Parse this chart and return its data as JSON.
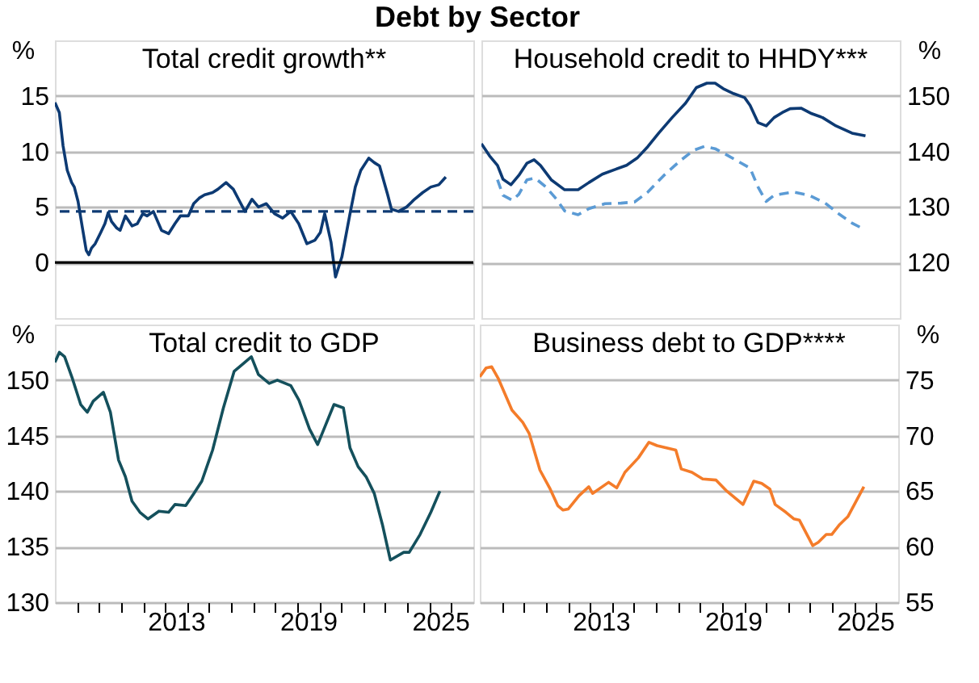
{
  "chart_data": [
    {
      "type": "line",
      "title": "Total credit growth**",
      "ylabel": "%",
      "annotations": [
        "Debt by Sector"
      ],
      "xlim": [
        2008,
        2027
      ],
      "ylim": [
        -5,
        20
      ],
      "yticks": [
        0,
        5,
        10,
        15
      ],
      "grid": "y",
      "tick_labels": "y",
      "ref_lines": [
        {
          "axis": "y",
          "value": 0,
          "color": "#000000",
          "line_style": "solid"
        },
        {
          "axis": "y",
          "value": 4.6,
          "color": "#0d3a73",
          "line_style": "dashed"
        }
      ],
      "series": [
        {
          "color": "#0d3a73",
          "line_style": "solid",
          "x": [
            2008.0,
            2008.2,
            2008.37,
            2008.56,
            2008.76,
            2008.88,
            2009.05,
            2009.25,
            2009.42,
            2009.54,
            2009.66,
            2009.83,
            2010.08,
            2010.27,
            2010.42,
            2010.57,
            2010.81,
            2010.96,
            2011.2,
            2011.5,
            2011.74,
            2011.99,
            2012.18,
            2012.47,
            2012.84,
            2013.16,
            2013.45,
            2013.7,
            2014.06,
            2014.3,
            2014.55,
            2014.8,
            2015.16,
            2015.4,
            2015.77,
            2016.1,
            2016.39,
            2016.63,
            2016.95,
            2017.24,
            2017.6,
            2017.97,
            2018.34,
            2018.71,
            2019.07,
            2019.44,
            2019.8,
            2020.05,
            2020.25,
            2020.54,
            2020.74,
            2021.03,
            2021.4,
            2021.64,
            2021.89,
            2022.25,
            2022.5,
            2022.74,
            2023.11,
            2023.28,
            2023.6,
            2023.97,
            2024.33,
            2024.7,
            2025.07,
            2025.43,
            2025.75
          ],
          "values": [
            14.4,
            13.5,
            10.5,
            8.3,
            7.2,
            6.8,
            5.5,
            3.1,
            1.1,
            0.7,
            1.3,
            1.7,
            2.7,
            3.5,
            4.5,
            3.7,
            3.1,
            2.9,
            4.2,
            3.3,
            3.5,
            4.4,
            4.2,
            4.6,
            2.9,
            2.6,
            3.5,
            4.2,
            4.2,
            5.3,
            5.8,
            6.1,
            6.3,
            6.6,
            7.2,
            6.6,
            5.5,
            4.6,
            5.7,
            5.0,
            5.3,
            4.4,
            4.0,
            4.6,
            3.5,
            1.7,
            2.0,
            2.7,
            4.4,
            1.8,
            -1.3,
            0.5,
            4.4,
            6.8,
            8.3,
            9.4,
            9.0,
            8.7,
            6.1,
            4.8,
            4.6,
            5.0,
            5.7,
            6.3,
            6.8,
            7.0,
            7.7
          ]
        }
      ]
    },
    {
      "type": "line",
      "title": "Household credit to HHDY***",
      "ylabel": "%",
      "xlim": [
        2008,
        2027
      ],
      "ylim": [
        110,
        160
      ],
      "yticks": [
        120,
        130,
        140,
        150
      ],
      "grid": "y",
      "tick_labels": "y",
      "series": [
        {
          "color": "#0d3a73",
          "line_style": "solid",
          "x": [
            2008.0,
            2008.37,
            2008.73,
            2008.98,
            2009.34,
            2009.7,
            2010.07,
            2010.39,
            2010.68,
            2011.17,
            2011.78,
            2012.39,
            2012.88,
            2013.49,
            2014.1,
            2014.59,
            2015.07,
            2015.56,
            2016.05,
            2016.66,
            2017.27,
            2017.76,
            2018.24,
            2018.61,
            2018.98,
            2019.46,
            2019.95,
            2020.2,
            2020.56,
            2020.93,
            2021.29,
            2021.66,
            2022.02,
            2022.51,
            2023.0,
            2023.49,
            2024.1,
            2024.83,
            2025.44
          ],
          "values": [
            141.4,
            139.2,
            137.5,
            135.0,
            134.0,
            135.7,
            137.9,
            138.5,
            137.5,
            134.9,
            133.1,
            133.1,
            134.4,
            135.9,
            136.8,
            137.5,
            138.8,
            140.9,
            143.3,
            146.1,
            148.7,
            151.5,
            152.3,
            152.3,
            151.3,
            150.4,
            149.7,
            148.3,
            145.2,
            144.6,
            146.1,
            147.0,
            147.7,
            147.8,
            146.8,
            146.1,
            144.6,
            143.3,
            142.8
          ]
        },
        {
          "color": "#5b9bd5",
          "line_style": "dashed",
          "x": [
            2008.73,
            2008.98,
            2009.41,
            2009.7,
            2010.07,
            2010.44,
            2010.93,
            2011.41,
            2011.78,
            2012.39,
            2012.88,
            2013.61,
            2014.34,
            2014.95,
            2015.56,
            2016.29,
            2017.02,
            2017.63,
            2018.12,
            2018.61,
            2019.22,
            2020.2,
            2020.56,
            2020.93,
            2021.29,
            2022.15,
            2022.88,
            2023.61,
            2024.22,
            2024.83,
            2025.32
          ],
          "values": [
            134.9,
            132.1,
            131.2,
            132.3,
            134.9,
            135.2,
            133.6,
            131.4,
            129.3,
            128.6,
            129.7,
            130.6,
            130.7,
            130.9,
            132.7,
            135.7,
            138.3,
            140.2,
            140.9,
            140.5,
            139.2,
            137.0,
            133.6,
            131.0,
            132.1,
            132.7,
            132.1,
            130.7,
            128.8,
            127.1,
            126.1
          ]
        }
      ]
    },
    {
      "type": "line",
      "title": "Total credit to GDP",
      "ylabel": "%",
      "xlim": [
        2008,
        2027
      ],
      "ylim": [
        130,
        155
      ],
      "yticks": [
        130,
        135,
        140,
        145,
        150
      ],
      "grid": "y",
      "xticks": [
        {
          "value": 2009,
          "label": null
        },
        {
          "value": 2010,
          "label": null
        },
        {
          "value": 2011,
          "label": null
        },
        {
          "value": 2012,
          "label": null
        },
        {
          "value": 2013,
          "label": null
        },
        {
          "value": 2014,
          "label": null
        },
        {
          "value": 2015,
          "label": null
        },
        {
          "value": 2016,
          "label": null
        },
        {
          "value": 2017,
          "label": null
        },
        {
          "value": 2018,
          "label": null
        },
        {
          "value": 2019,
          "label": null
        },
        {
          "value": 2020,
          "label": null
        },
        {
          "value": 2021,
          "label": null
        },
        {
          "value": 2022,
          "label": null
        },
        {
          "value": 2023,
          "label": null
        },
        {
          "value": 2024,
          "label": null
        },
        {
          "value": 2025,
          "label": null
        },
        {
          "value": 2026,
          "label": null
        },
        {
          "value": 2013.5,
          "label": "2013"
        },
        {
          "value": 2019.5,
          "label": "2019"
        },
        {
          "value": 2025.5,
          "label": "2025"
        }
      ],
      "series": [
        {
          "color": "#14505c",
          "line_style": "solid",
          "x": [
            2008.0,
            2008.2,
            2008.44,
            2008.8,
            2009.17,
            2009.47,
            2009.74,
            2010.2,
            2010.52,
            2010.89,
            2011.2,
            2011.5,
            2011.86,
            2012.23,
            2012.72,
            2013.16,
            2013.45,
            2013.94,
            2014.31,
            2014.67,
            2015.16,
            2015.65,
            2016.14,
            2016.5,
            2016.92,
            2017.24,
            2017.73,
            2018.1,
            2018.71,
            2019.08,
            2019.56,
            2019.93,
            2020.3,
            2020.67,
            2021.1,
            2021.4,
            2021.77,
            2022.13,
            2022.5,
            2022.87,
            2023.23,
            2023.84,
            2024.09,
            2024.58,
            2025.07,
            2025.48
          ],
          "values": [
            151.6,
            152.5,
            152.1,
            150.1,
            147.8,
            147.1,
            148.1,
            148.9,
            147.1,
            142.8,
            141.3,
            139.1,
            138.1,
            137.5,
            138.2,
            138.1,
            138.8,
            138.7,
            139.8,
            140.9,
            143.7,
            147.5,
            150.8,
            151.4,
            152.1,
            150.5,
            149.7,
            150.0,
            149.5,
            148.2,
            145.6,
            144.2,
            146.0,
            147.8,
            147.5,
            143.9,
            142.2,
            141.3,
            139.8,
            137.0,
            133.8,
            134.5,
            134.5,
            136.1,
            138.1,
            140.0
          ]
        }
      ]
    },
    {
      "type": "line",
      "title": "Business debt to GDP****",
      "ylabel": "%",
      "xlim": [
        2008,
        2027
      ],
      "ylim": [
        55,
        80
      ],
      "yticks": [
        55,
        60,
        65,
        70,
        75
      ],
      "grid": "y",
      "xticks": [
        {
          "value": 2009,
          "label": null
        },
        {
          "value": 2010,
          "label": null
        },
        {
          "value": 2011,
          "label": null
        },
        {
          "value": 2012,
          "label": null
        },
        {
          "value": 2013,
          "label": null
        },
        {
          "value": 2014,
          "label": null
        },
        {
          "value": 2015,
          "label": null
        },
        {
          "value": 2016,
          "label": null
        },
        {
          "value": 2017,
          "label": null
        },
        {
          "value": 2018,
          "label": null
        },
        {
          "value": 2019,
          "label": null
        },
        {
          "value": 2020,
          "label": null
        },
        {
          "value": 2021,
          "label": null
        },
        {
          "value": 2022,
          "label": null
        },
        {
          "value": 2023,
          "label": null
        },
        {
          "value": 2024,
          "label": null
        },
        {
          "value": 2025,
          "label": null
        },
        {
          "value": 2026,
          "label": null
        },
        {
          "value": 2013.5,
          "label": "2013"
        },
        {
          "value": 2019.5,
          "label": "2019"
        },
        {
          "value": 2025.5,
          "label": "2025"
        }
      ],
      "series": [
        {
          "color": "#f47c2a",
          "line_style": "solid",
          "x": [
            2008.0,
            2008.29,
            2008.54,
            2008.85,
            2009.46,
            2009.95,
            2010.24,
            2010.73,
            2011.17,
            2011.54,
            2011.78,
            2012.02,
            2012.51,
            2012.95,
            2013.12,
            2013.85,
            2014.22,
            2014.59,
            2015.2,
            2015.68,
            2016.05,
            2016.9,
            2017.15,
            2017.63,
            2018.12,
            2018.73,
            2019.22,
            2019.95,
            2020.44,
            2020.8,
            2021.17,
            2021.41,
            2021.9,
            2022.27,
            2022.51,
            2023.12,
            2023.37,
            2023.73,
            2023.98,
            2024.34,
            2024.71,
            2025.44
          ],
          "values": [
            75.3,
            76.1,
            76.2,
            75.1,
            72.3,
            71.2,
            70.2,
            66.9,
            65.3,
            63.7,
            63.3,
            63.4,
            64.6,
            65.4,
            64.8,
            65.8,
            65.3,
            66.7,
            68.0,
            69.4,
            69.1,
            68.7,
            67.0,
            66.7,
            66.1,
            66.0,
            65.0,
            63.8,
            65.9,
            65.7,
            65.2,
            63.8,
            63.1,
            62.5,
            62.4,
            60.1,
            60.4,
            61.1,
            61.1,
            62.0,
            62.7,
            65.4
          ]
        }
      ]
    }
  ]
}
